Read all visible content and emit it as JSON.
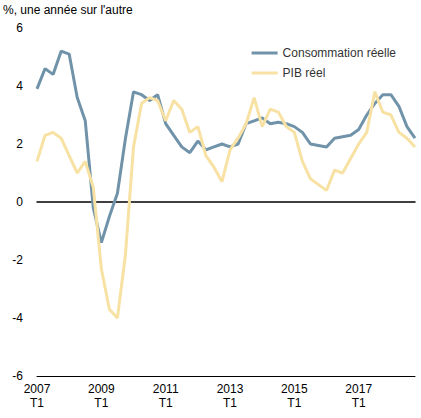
{
  "chart_data": {
    "type": "line",
    "y_label": "%, une année sur l'autre",
    "categories": [
      "2007\nT1",
      null,
      null,
      null,
      null,
      null,
      null,
      null,
      "2009\nT1",
      null,
      null,
      null,
      null,
      null,
      null,
      null,
      "2011\nT1",
      null,
      null,
      null,
      null,
      null,
      null,
      null,
      "2013\nT1",
      null,
      null,
      null,
      null,
      null,
      null,
      null,
      "2015\nT1",
      null,
      null,
      null,
      null,
      null,
      null,
      null,
      "2017\nT1",
      null,
      null,
      null,
      null,
      null,
      null,
      null
    ],
    "series": [
      {
        "name": "Consommation réelle",
        "color": "#7093a9",
        "values": [
          3.9,
          4.6,
          4.4,
          5.2,
          5.1,
          3.6,
          2.8,
          -0.2,
          -1.4,
          -0.5,
          0.3,
          2.2,
          3.8,
          3.7,
          3.5,
          3.7,
          2.7,
          2.3,
          1.9,
          1.7,
          2.1,
          1.8,
          1.9,
          2.0,
          1.9,
          2.0,
          2.7,
          2.8,
          2.9,
          2.7,
          2.75,
          2.7,
          2.6,
          2.4,
          2.0,
          1.95,
          1.9,
          2.2,
          2.25,
          2.3,
          2.5,
          3.0,
          3.4,
          3.7,
          3.7,
          3.3,
          2.6,
          2.2
        ]
      },
      {
        "name": "PIB réel",
        "color": "#f7e1a3",
        "values": [
          1.4,
          2.3,
          2.4,
          2.2,
          1.6,
          1.0,
          1.4,
          0.5,
          -2.3,
          -3.7,
          -4.0,
          -1.8,
          1.9,
          3.4,
          3.6,
          3.5,
          2.8,
          3.5,
          3.2,
          2.4,
          2.6,
          1.6,
          1.2,
          0.7,
          1.8,
          2.2,
          2.7,
          3.6,
          2.6,
          3.2,
          3.1,
          2.6,
          2.4,
          1.4,
          0.8,
          0.6,
          0.4,
          1.1,
          1.0,
          1.5,
          2.0,
          2.4,
          3.8,
          3.1,
          3.0,
          2.4,
          2.2,
          1.9
        ]
      }
    ],
    "ylim": [
      -6,
      6
    ],
    "yticks": [
      -6,
      -4,
      -2,
      0,
      2,
      4,
      6
    ],
    "grid": false,
    "legend": "top-right"
  }
}
